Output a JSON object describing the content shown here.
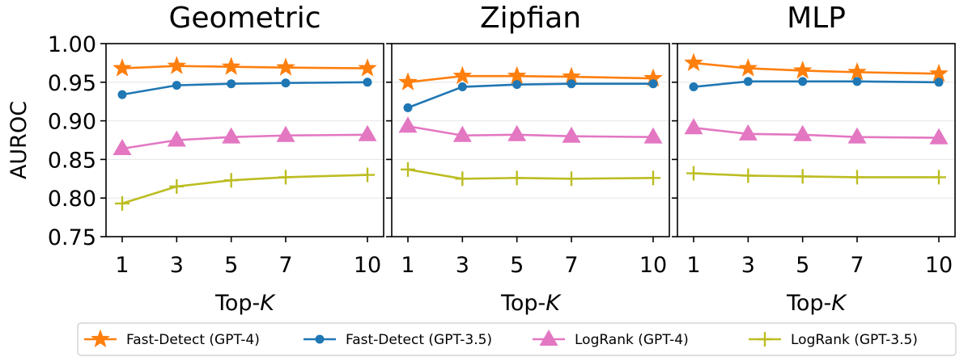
{
  "chart_data": {
    "type": "line",
    "ylabel": "AUROC",
    "xlabel_prefix": "Top-",
    "xlabel_var": "K",
    "ylim": [
      0.75,
      1.0
    ],
    "yticks": [
      "0.75",
      "0.80",
      "0.85",
      "0.90",
      "0.95",
      "1.00"
    ],
    "x": [
      1,
      3,
      5,
      7,
      10
    ],
    "xtick_labels": [
      "1",
      "3",
      "5",
      "7",
      "10"
    ],
    "grid": "horizontal",
    "legend_position": "bottom",
    "series_styles": [
      {
        "name": "Fast-Detect (GPT-4)",
        "color": "#ff7f0e",
        "marker": "star"
      },
      {
        "name": "Fast-Detect (GPT-3.5)",
        "color": "#1f77b4",
        "marker": "circle"
      },
      {
        "name": "LogRank (GPT-4)",
        "color": "#e377c2",
        "marker": "triangle"
      },
      {
        "name": "LogRank (GPT-3.5)",
        "color": "#bcbd22",
        "marker": "plus"
      }
    ],
    "panels": [
      {
        "title": "Geometric",
        "series": [
          {
            "name": "Fast-Detect (GPT-4)",
            "values": [
              0.968,
              0.971,
              0.97,
              0.969,
              0.968
            ]
          },
          {
            "name": "Fast-Detect (GPT-3.5)",
            "values": [
              0.934,
              0.946,
              0.948,
              0.949,
              0.95
            ]
          },
          {
            "name": "LogRank (GPT-4)",
            "values": [
              0.864,
              0.875,
              0.879,
              0.881,
              0.882
            ]
          },
          {
            "name": "LogRank (GPT-3.5)",
            "values": [
              0.793,
              0.815,
              0.823,
              0.827,
              0.83
            ]
          }
        ]
      },
      {
        "title": "Zipfian",
        "series": [
          {
            "name": "Fast-Detect (GPT-4)",
            "values": [
              0.95,
              0.958,
              0.958,
              0.957,
              0.955
            ]
          },
          {
            "name": "Fast-Detect (GPT-3.5)",
            "values": [
              0.917,
              0.944,
              0.947,
              0.948,
              0.948
            ]
          },
          {
            "name": "LogRank (GPT-4)",
            "values": [
              0.893,
              0.881,
              0.882,
              0.88,
              0.879
            ]
          },
          {
            "name": "LogRank (GPT-3.5)",
            "values": [
              0.837,
              0.825,
              0.826,
              0.825,
              0.826
            ]
          }
        ]
      },
      {
        "title": "MLP",
        "series": [
          {
            "name": "Fast-Detect (GPT-4)",
            "values": [
              0.975,
              0.968,
              0.965,
              0.963,
              0.961
            ]
          },
          {
            "name": "Fast-Detect (GPT-3.5)",
            "values": [
              0.944,
              0.951,
              0.951,
              0.951,
              0.95
            ]
          },
          {
            "name": "LogRank (GPT-4)",
            "values": [
              0.891,
              0.883,
              0.882,
              0.879,
              0.878
            ]
          },
          {
            "name": "LogRank (GPT-3.5)",
            "values": [
              0.832,
              0.829,
              0.828,
              0.827,
              0.827
            ]
          }
        ]
      }
    ]
  }
}
